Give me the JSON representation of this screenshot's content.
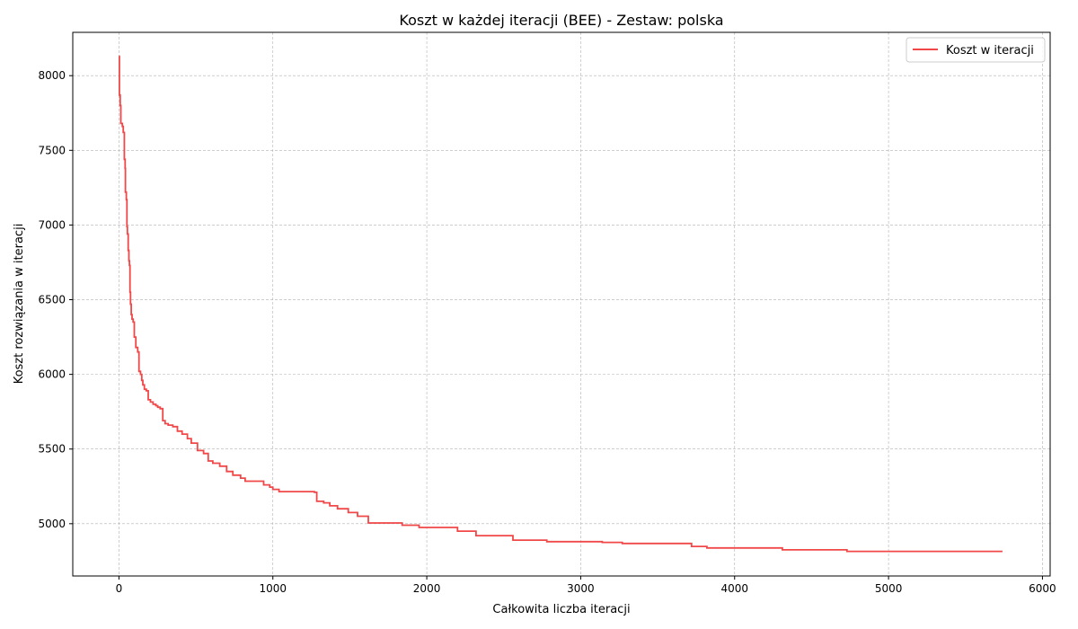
{
  "chart_data": {
    "type": "line",
    "title": "Koszt w każdej iteracji (BEE) - Zestaw: polska",
    "xlabel": "Całkowita liczba iteracji",
    "ylabel": "Koszt rozwiązania w iteracji",
    "xlim": [
      -300,
      6050
    ],
    "ylim": [
      4650,
      8290
    ],
    "xticks": [
      0,
      1000,
      2000,
      3000,
      4000,
      5000,
      6000
    ],
    "yticks": [
      5000,
      5500,
      6000,
      6500,
      7000,
      7500,
      8000
    ],
    "grid": true,
    "legend_position": "top-right",
    "series": [
      {
        "name": "Koszt w iteracji",
        "color": "#f04848",
        "step": true,
        "points": [
          [
            0,
            8130
          ],
          [
            3,
            7870
          ],
          [
            8,
            7800
          ],
          [
            12,
            7680
          ],
          [
            22,
            7660
          ],
          [
            28,
            7620
          ],
          [
            35,
            7440
          ],
          [
            40,
            7380
          ],
          [
            42,
            7220
          ],
          [
            48,
            7170
          ],
          [
            52,
            6990
          ],
          [
            55,
            6940
          ],
          [
            60,
            6830
          ],
          [
            65,
            6760
          ],
          [
            68,
            6730
          ],
          [
            72,
            6550
          ],
          [
            75,
            6470
          ],
          [
            80,
            6400
          ],
          [
            85,
            6370
          ],
          [
            92,
            6350
          ],
          [
            100,
            6250
          ],
          [
            110,
            6180
          ],
          [
            122,
            6150
          ],
          [
            130,
            6020
          ],
          [
            140,
            6000
          ],
          [
            148,
            5960
          ],
          [
            155,
            5930
          ],
          [
            165,
            5900
          ],
          [
            178,
            5890
          ],
          [
            190,
            5830
          ],
          [
            205,
            5815
          ],
          [
            222,
            5800
          ],
          [
            240,
            5790
          ],
          [
            252,
            5780
          ],
          [
            268,
            5770
          ],
          [
            285,
            5690
          ],
          [
            300,
            5670
          ],
          [
            320,
            5660
          ],
          [
            350,
            5650
          ],
          [
            380,
            5620
          ],
          [
            410,
            5600
          ],
          [
            445,
            5570
          ],
          [
            470,
            5540
          ],
          [
            510,
            5490
          ],
          [
            550,
            5470
          ],
          [
            580,
            5420
          ],
          [
            610,
            5405
          ],
          [
            655,
            5385
          ],
          [
            700,
            5350
          ],
          [
            740,
            5325
          ],
          [
            790,
            5305
          ],
          [
            820,
            5285
          ],
          [
            940,
            5260
          ],
          [
            980,
            5245
          ],
          [
            1000,
            5230
          ],
          [
            1040,
            5215
          ],
          [
            1270,
            5210
          ],
          [
            1285,
            5150
          ],
          [
            1330,
            5140
          ],
          [
            1370,
            5120
          ],
          [
            1420,
            5100
          ],
          [
            1490,
            5075
          ],
          [
            1550,
            5050
          ],
          [
            1620,
            5005
          ],
          [
            1840,
            4990
          ],
          [
            1950,
            4975
          ],
          [
            2200,
            4950
          ],
          [
            2320,
            4920
          ],
          [
            2560,
            4890
          ],
          [
            2780,
            4880
          ],
          [
            3140,
            4875
          ],
          [
            3270,
            4868
          ],
          [
            3720,
            4848
          ],
          [
            3820,
            4838
          ],
          [
            4310,
            4825
          ],
          [
            4730,
            4815
          ],
          [
            5740,
            4815
          ]
        ]
      }
    ]
  }
}
